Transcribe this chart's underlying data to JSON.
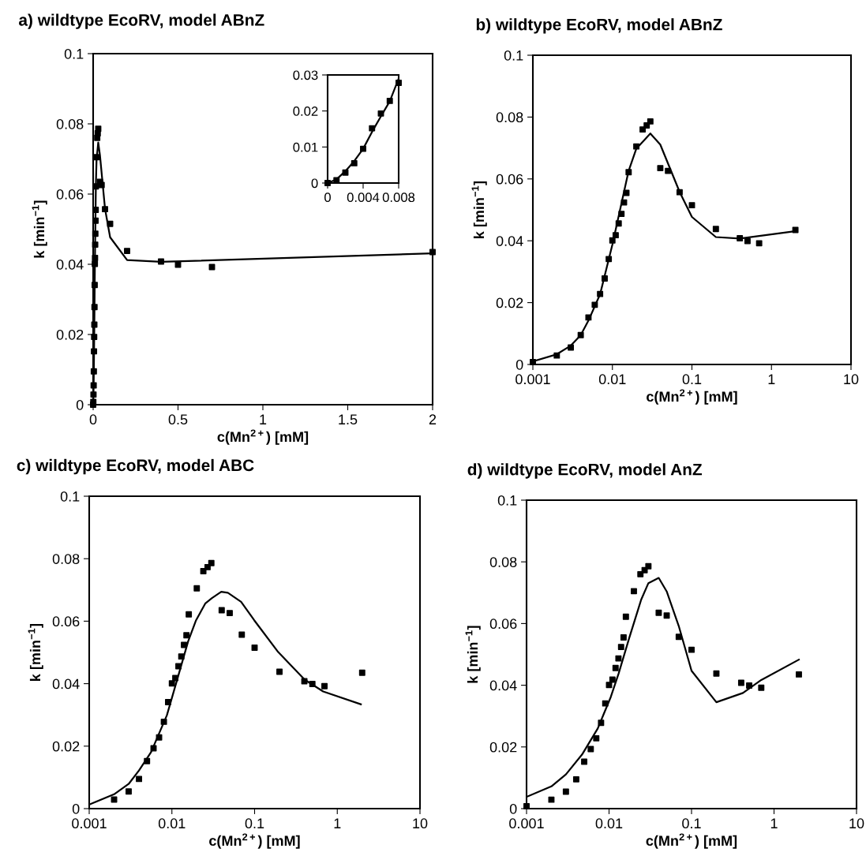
{
  "chart_data": [
    {
      "type": "scatter",
      "title": "a) wildtype EcoRV, model ABnZ",
      "xlabel": "c(Mn$^{2+}$) [mM]",
      "ylabel": "k [min$^{−1}$]",
      "xlim": [
        0,
        2
      ],
      "ylim": [
        0,
        0.1
      ],
      "xticks": [
        0,
        0.5,
        1,
        1.5,
        2
      ],
      "yticks": [
        0,
        0.02,
        0.04,
        0.06,
        0.08,
        0.1
      ],
      "grid": false,
      "legend": false,
      "series": [
        {
          "type": "scatter",
          "marker": "square",
          "color": "#000000",
          "x": [
            0,
            0.001,
            0.002,
            0.003,
            0.004,
            0.005,
            0.006,
            0.007,
            0.008,
            0.009,
            0.01,
            0.011,
            0.012,
            0.013,
            0.014,
            0.015,
            0.016,
            0.02,
            0.024,
            0.027,
            0.03,
            0.04,
            0.05,
            0.07,
            0.1,
            0.2,
            0.4,
            0.5,
            0.7,
            2
          ],
          "values": [
            0,
            0.0008,
            0.0029,
            0.0055,
            0.0095,
            0.0152,
            0.0193,
            0.0228,
            0.0278,
            0.0341,
            0.0401,
            0.0418,
            0.0456,
            0.0487,
            0.0524,
            0.0555,
            0.0622,
            0.0705,
            0.076,
            0.0773,
            0.0786,
            0.0635,
            0.0626,
            0.0557,
            0.0515,
            0.0438,
            0.0408,
            0.0399,
            0.0392,
            0.0435
          ]
        },
        {
          "type": "line",
          "marker": "none",
          "line_style": "solid",
          "color": "#000000",
          "x": [
            0,
            0.001,
            0.002,
            0.003,
            0.004,
            0.005,
            0.007,
            0.01,
            0.016,
            0.02,
            0.03,
            0.04,
            0.07,
            0.1,
            0.2,
            0.4,
            2
          ],
          "values": [
            0,
            0.001,
            0.0033,
            0.0061,
            0.0095,
            0.0142,
            0.0227,
            0.0388,
            0.0626,
            0.0698,
            0.0747,
            0.0711,
            0.0558,
            0.0477,
            0.0412,
            0.0407,
            0.0431
          ]
        }
      ]
    },
    {
      "type": "scatter",
      "xlim": [
        0,
        0.008
      ],
      "ylim": [
        0,
        0.03
      ],
      "xticks": [
        0,
        0.004,
        0.008
      ],
      "yticks": [
        0,
        0.01,
        0.02,
        0.03
      ],
      "grid": false,
      "legend": false,
      "series": [
        {
          "type": "scatter",
          "marker": "square",
          "color": "#000000",
          "x": [
            0,
            0.001,
            0.002,
            0.003,
            0.004,
            0.005,
            0.006,
            0.007,
            0.008
          ],
          "values": [
            0,
            0.0008,
            0.0029,
            0.0055,
            0.0095,
            0.0152,
            0.0193,
            0.0228,
            0.0278
          ]
        },
        {
          "type": "line",
          "marker": "none",
          "line_style": "solid",
          "color": "#000000",
          "x": [
            0,
            0.001,
            0.002,
            0.003,
            0.004,
            0.005,
            0.006,
            0.007,
            0.008
          ],
          "values": [
            0,
            0.001,
            0.0033,
            0.0061,
            0.0095,
            0.0142,
            0.0185,
            0.0227,
            0.029
          ]
        }
      ]
    },
    {
      "type": "scatter",
      "title": "b) wildtype EcoRV, model ABnZ",
      "xlabel": "c(Mn$^{2+}$) [mM]",
      "ylabel": "k [min$^{−1}$]",
      "log": "x",
      "xlim": [
        0.001,
        10
      ],
      "ylim": [
        0,
        0.1
      ],
      "xticks": [
        0.001,
        0.01,
        0.1,
        1,
        10
      ],
      "yticks": [
        0,
        0.02,
        0.04,
        0.06,
        0.08,
        0.1
      ],
      "grid": false,
      "legend": false,
      "series": [
        {
          "type": "scatter",
          "marker": "square",
          "color": "#000000",
          "x": [
            0.001,
            0.002,
            0.003,
            0.004,
            0.005,
            0.006,
            0.007,
            0.008,
            0.009,
            0.01,
            0.011,
            0.012,
            0.013,
            0.014,
            0.015,
            0.016,
            0.02,
            0.024,
            0.027,
            0.03,
            0.04,
            0.05,
            0.07,
            0.1,
            0.2,
            0.4,
            0.5,
            0.7,
            2
          ],
          "values": [
            0.0008,
            0.0029,
            0.0055,
            0.0095,
            0.0152,
            0.0193,
            0.0228,
            0.0278,
            0.0341,
            0.0401,
            0.0418,
            0.0456,
            0.0487,
            0.0524,
            0.0555,
            0.0622,
            0.0705,
            0.076,
            0.0773,
            0.0786,
            0.0635,
            0.0626,
            0.0557,
            0.0515,
            0.0438,
            0.0408,
            0.0399,
            0.0392,
            0.0435
          ]
        },
        {
          "type": "line",
          "marker": "none",
          "line_style": "solid",
          "color": "#000000",
          "x": [
            0.001,
            0.002,
            0.003,
            0.004,
            0.005,
            0.007,
            0.01,
            0.016,
            0.02,
            0.03,
            0.04,
            0.07,
            0.1,
            0.2,
            0.4,
            2
          ],
          "values": [
            0.001,
            0.0033,
            0.0061,
            0.0095,
            0.0142,
            0.0227,
            0.0388,
            0.0626,
            0.0698,
            0.0747,
            0.0711,
            0.0558,
            0.0477,
            0.0412,
            0.0407,
            0.0431
          ]
        }
      ]
    },
    {
      "type": "scatter",
      "title": "c) wildtype EcoRV, model ABC",
      "xlabel": "c(Mn$^{2+}$) [mM]",
      "ylabel": "k [min$^{−1}$]",
      "log": "x",
      "xlim": [
        0.001,
        10
      ],
      "ylim": [
        0,
        0.1
      ],
      "xticks": [
        0.001,
        0.01,
        0.1,
        1,
        10
      ],
      "yticks": [
        0,
        0.02,
        0.04,
        0.06,
        0.08,
        0.1
      ],
      "grid": false,
      "legend": false,
      "series": [
        {
          "type": "scatter",
          "marker": "square",
          "color": "#000000",
          "x": [
            0.002,
            0.003,
            0.004,
            0.005,
            0.006,
            0.007,
            0.008,
            0.009,
            0.01,
            0.011,
            0.012,
            0.013,
            0.014,
            0.015,
            0.016,
            0.02,
            0.024,
            0.027,
            0.03,
            0.04,
            0.05,
            0.07,
            0.1,
            0.2,
            0.4,
            0.5,
            0.7,
            2
          ],
          "values": [
            0.0029,
            0.0055,
            0.0095,
            0.0152,
            0.0193,
            0.0228,
            0.0278,
            0.0341,
            0.0401,
            0.0418,
            0.0456,
            0.0487,
            0.0524,
            0.0555,
            0.0622,
            0.0705,
            0.076,
            0.0773,
            0.0786,
            0.0635,
            0.0626,
            0.0557,
            0.0515,
            0.0438,
            0.0408,
            0.0399,
            0.0392,
            0.0435
          ]
        },
        {
          "type": "line",
          "marker": "none",
          "line_style": "solid",
          "color": "#000000",
          "x": [
            0.001,
            0.002,
            0.003,
            0.004,
            0.0056,
            0.0087,
            0.0117,
            0.0157,
            0.0196,
            0.0254,
            0.0305,
            0.0395,
            0.0475,
            0.0687,
            0.099,
            0.193,
            0.403,
            0.675,
            1.93
          ],
          "values": [
            0.0013,
            0.0046,
            0.0079,
            0.0122,
            0.0181,
            0.0299,
            0.0417,
            0.0535,
            0.0603,
            0.0657,
            0.0674,
            0.0694,
            0.0691,
            0.0662,
            0.0603,
            0.0501,
            0.0413,
            0.0375,
            0.0334
          ]
        }
      ]
    },
    {
      "type": "scatter",
      "title": "d) wildtype EcoRV, model AnZ",
      "xlabel": "c(Mn$^{2+}$) [mM]",
      "ylabel": "k [min$^{−1}$]",
      "log": "x",
      "xlim": [
        0.001,
        10
      ],
      "ylim": [
        0,
        0.1
      ],
      "xticks": [
        0.001,
        0.01,
        0.1,
        1,
        10
      ],
      "yticks": [
        0,
        0.02,
        0.04,
        0.06,
        0.08,
        0.1
      ],
      "grid": false,
      "legend": false,
      "series": [
        {
          "type": "scatter",
          "marker": "square",
          "color": "#000000",
          "x": [
            0.001,
            0.002,
            0.003,
            0.004,
            0.005,
            0.006,
            0.007,
            0.008,
            0.009,
            0.01,
            0.011,
            0.012,
            0.013,
            0.014,
            0.015,
            0.016,
            0.02,
            0.024,
            0.027,
            0.03,
            0.04,
            0.05,
            0.07,
            0.1,
            0.2,
            0.4,
            0.5,
            0.7,
            2
          ],
          "values": [
            0.0008,
            0.0029,
            0.0055,
            0.0095,
            0.0152,
            0.0193,
            0.0228,
            0.0278,
            0.0341,
            0.0401,
            0.0418,
            0.0456,
            0.0487,
            0.0524,
            0.0555,
            0.0622,
            0.0705,
            0.076,
            0.0773,
            0.0786,
            0.0635,
            0.0626,
            0.0557,
            0.0515,
            0.0438,
            0.0408,
            0.0399,
            0.0392,
            0.0435
          ]
        },
        {
          "type": "line",
          "marker": "none",
          "line_style": "solid",
          "color": "#000000",
          "x": [
            0.001,
            0.002,
            0.003,
            0.0047,
            0.0073,
            0.0105,
            0.0131,
            0.0176,
            0.0245,
            0.03,
            0.04,
            0.05,
            0.07,
            0.1,
            0.2,
            0.42,
            0.7,
            2
          ],
          "values": [
            0.0038,
            0.0072,
            0.0111,
            0.0175,
            0.026,
            0.0362,
            0.0439,
            0.0554,
            0.0677,
            0.0731,
            0.0748,
            0.0704,
            0.0592,
            0.0447,
            0.0345,
            0.0375,
            0.0417,
            0.0483
          ]
        }
      ]
    }
  ]
}
